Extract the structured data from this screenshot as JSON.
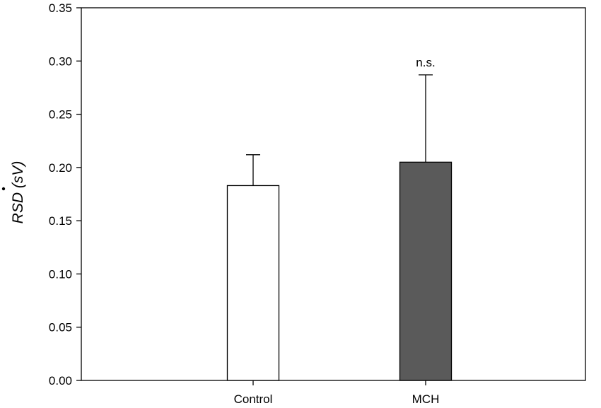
{
  "chart_data": {
    "type": "bar",
    "categories": [
      "Control",
      "MCH"
    ],
    "values": [
      0.183,
      0.205
    ],
    "errors": [
      0.029,
      0.082
    ],
    "bar_colors": [
      "#ffffff",
      "#5a5a5a"
    ],
    "ylabel": "RSD (sV)",
    "ylim": [
      0,
      0.35
    ],
    "yticks": [
      "0.00",
      "0.05",
      "0.10",
      "0.15",
      "0.20",
      "0.25",
      "0.30",
      "0.35"
    ],
    "ytick_values": [
      0,
      0.05,
      0.1,
      0.15,
      0.2,
      0.25,
      0.3,
      0.35
    ],
    "annotations": [
      {
        "category": "MCH",
        "text": "n.s."
      }
    ],
    "grid": false,
    "legend": "none"
  }
}
